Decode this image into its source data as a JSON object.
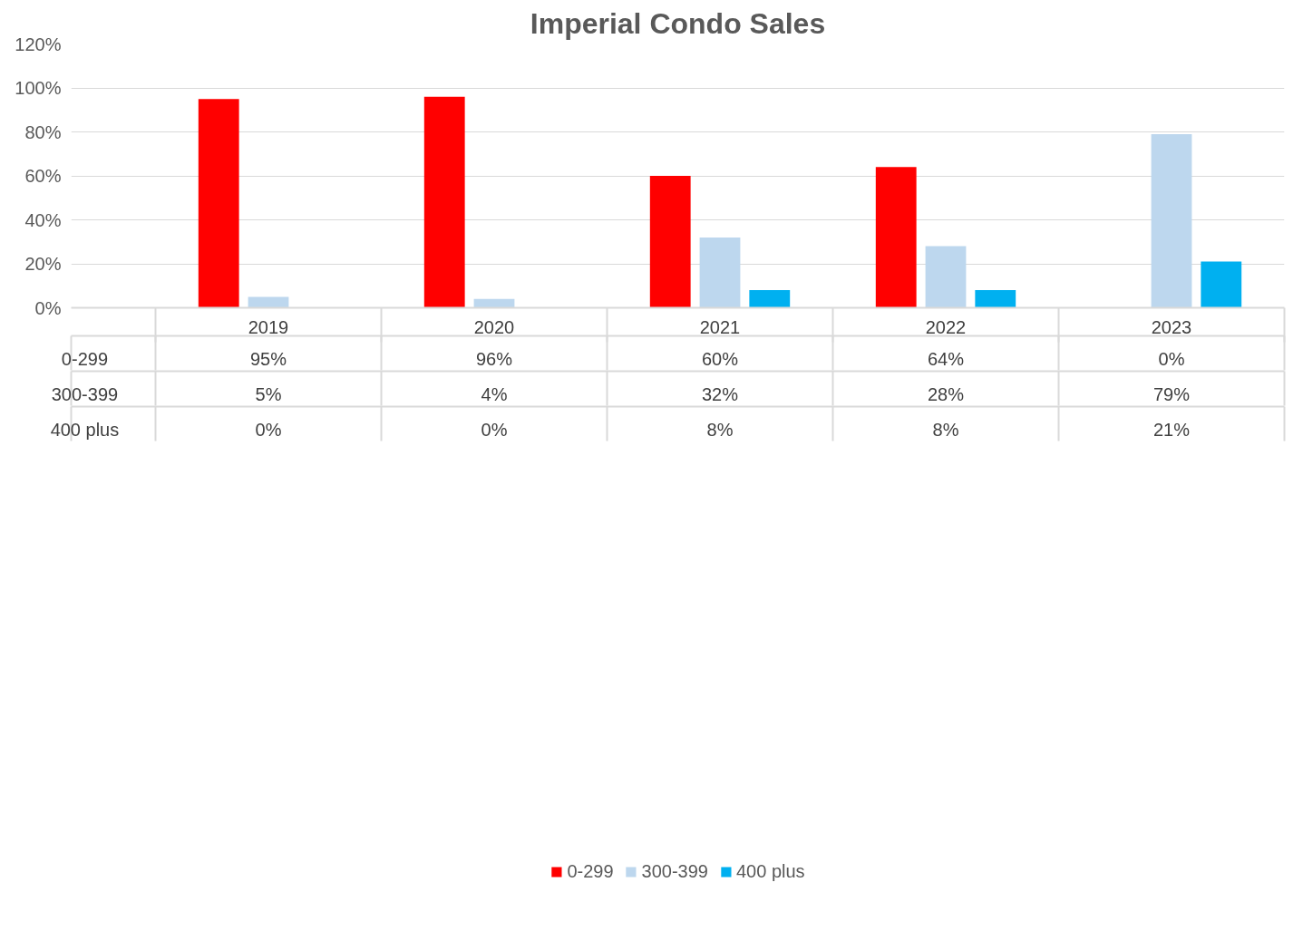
{
  "chart_data": {
    "type": "bar",
    "title": "Imperial Condo Sales",
    "categories": [
      "2019",
      "2020",
      "2021",
      "2022",
      "2023"
    ],
    "series": [
      {
        "name": "0-299",
        "color": "#ff0000",
        "values": [
          95,
          96,
          60,
          64,
          0
        ],
        "value_labels": [
          "95%",
          "96%",
          "60%",
          "64%",
          "0%"
        ]
      },
      {
        "name": "300-399",
        "color": "#bdd7ee",
        "values": [
          5,
          4,
          32,
          28,
          79
        ],
        "value_labels": [
          "5%",
          "4%",
          "32%",
          "28%",
          "79%"
        ]
      },
      {
        "name": "400 plus",
        "color": "#00b0f0",
        "values": [
          0,
          0,
          8,
          8,
          21
        ],
        "value_labels": [
          "0%",
          "0%",
          "8%",
          "8%",
          "21%"
        ]
      }
    ],
    "ylim": [
      0,
      120
    ],
    "yticks": [
      {
        "value": 0,
        "label": "0%"
      },
      {
        "value": 20,
        "label": "20%"
      },
      {
        "value": 40,
        "label": "40%"
      },
      {
        "value": 60,
        "label": "60%"
      },
      {
        "value": 80,
        "label": "80%"
      },
      {
        "value": 100,
        "label": "100%"
      },
      {
        "value": 120,
        "label": "120%"
      }
    ],
    "grid": "y",
    "legend": "bottom"
  }
}
